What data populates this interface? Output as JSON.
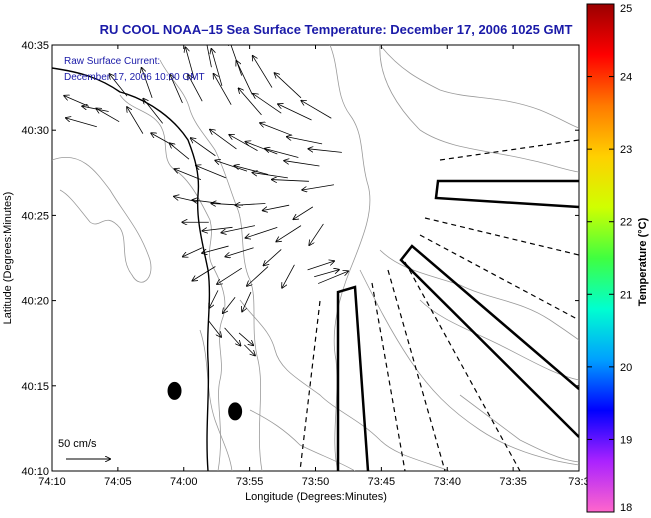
{
  "title": "RU COOL  NOAA–15  Sea Surface Temperature:  December 17, 2006 1025 GMT",
  "current_note": {
    "line1": "Raw Surface Current:",
    "line2": "December 17, 2006 10:00 GMT"
  },
  "scale_label": "50 cm/s",
  "xlabel": "Longitude (Degrees:Minutes)",
  "ylabel": "Latitude (Degrees:Minutes)",
  "x_ticks": [
    "74:10",
    "74:05",
    "74:00",
    "73:55",
    "73:50",
    "73:45",
    "73:40",
    "73:35",
    "73:3"
  ],
  "y_ticks": [
    "40:35",
    "40:30",
    "40:25",
    "40:20",
    "40:15",
    "40:10"
  ],
  "colorbar": {
    "label": "Temperature (°C)",
    "ticks": [
      "25",
      "24",
      "23",
      "22",
      "21",
      "20",
      "19",
      "18"
    ],
    "range": [
      18,
      25
    ],
    "colors": [
      "#ff66cc",
      "#aa22ff",
      "#0000ff",
      "#00a0ff",
      "#00ffd0",
      "#40ff40",
      "#d0ff00",
      "#ffd000",
      "#ff7a00",
      "#ff0000",
      "#9a0000"
    ]
  },
  "colors": {
    "title": "#1a1aa8",
    "coast": "#000000",
    "bathymetry": "#9a9a9a",
    "vectors": "#000000"
  },
  "map_data": {
    "x_range_minutes": [
      -250,
      -210
    ],
    "y_range_minutes": [
      2410,
      2435
    ],
    "stations": [
      {
        "lon": -240.7,
        "lat": 2414.7
      },
      {
        "lon": -236.1,
        "lat": 2413.5
      }
    ],
    "current_vectors_cm_s": [
      {
        "lon": -247.2,
        "lat": 2431.4,
        "u": -28,
        "v": 12
      },
      {
        "lon": -246.6,
        "lat": 2430.2,
        "u": -35,
        "v": 10
      },
      {
        "lon": -245.7,
        "lat": 2431.1,
        "u": -30,
        "v": 6
      },
      {
        "lon": -244.9,
        "lat": 2430.5,
        "u": -26,
        "v": 15
      },
      {
        "lon": -244.3,
        "lat": 2432.0,
        "u": -20,
        "v": 25
      },
      {
        "lon": -243.1,
        "lat": 2429.8,
        "u": -18,
        "v": 30
      },
      {
        "lon": -242.4,
        "lat": 2431.9,
        "u": -12,
        "v": 34
      },
      {
        "lon": -241.6,
        "lat": 2430.4,
        "u": -22,
        "v": 28
      },
      {
        "lon": -240.8,
        "lat": 2429.1,
        "u": -25,
        "v": 14
      },
      {
        "lon": -240.1,
        "lat": 2431.6,
        "u": -14,
        "v": 32
      },
      {
        "lon": -239.2,
        "lat": 2433.0,
        "u": -10,
        "v": 36
      },
      {
        "lon": -238.6,
        "lat": 2431.7,
        "u": -16,
        "v": 30
      },
      {
        "lon": -237.9,
        "lat": 2433.7,
        "u": -8,
        "v": 40
      },
      {
        "lon": -237.1,
        "lat": 2432.6,
        "u": -12,
        "v": 42
      },
      {
        "lon": -236.4,
        "lat": 2431.5,
        "u": -20,
        "v": 35
      },
      {
        "lon": -235.6,
        "lat": 2433.2,
        "u": -14,
        "v": 40
      },
      {
        "lon": -234.8,
        "lat": 2432.1,
        "u": -18,
        "v": 38
      },
      {
        "lon": -234.1,
        "lat": 2430.9,
        "u": -26,
        "v": 30
      },
      {
        "lon": -233.3,
        "lat": 2432.5,
        "u": -22,
        "v": 36
      },
      {
        "lon": -232.6,
        "lat": 2431.0,
        "u": -32,
        "v": 22
      },
      {
        "lon": -231.8,
        "lat": 2429.7,
        "u": -36,
        "v": 14
      },
      {
        "lon": -231.1,
        "lat": 2431.9,
        "u": -30,
        "v": 28
      },
      {
        "lon": -230.3,
        "lat": 2430.6,
        "u": -38,
        "v": 18
      },
      {
        "lon": -229.5,
        "lat": 2429.2,
        "u": -40,
        "v": 8
      },
      {
        "lon": -228.8,
        "lat": 2430.7,
        "u": -34,
        "v": 20
      },
      {
        "lon": -228.0,
        "lat": 2428.7,
        "u": -38,
        "v": 4
      },
      {
        "lon": -239.6,
        "lat": 2428.3,
        "u": -22,
        "v": 18
      },
      {
        "lon": -238.7,
        "lat": 2427.1,
        "u": -30,
        "v": 12
      },
      {
        "lon": -237.6,
        "lat": 2428.5,
        "u": -28,
        "v": 20
      },
      {
        "lon": -236.8,
        "lat": 2427.2,
        "u": -34,
        "v": 14
      },
      {
        "lon": -236.0,
        "lat": 2428.9,
        "u": -30,
        "v": 22
      },
      {
        "lon": -235.2,
        "lat": 2427.6,
        "u": -36,
        "v": 12
      },
      {
        "lon": -234.4,
        "lat": 2428.8,
        "u": -32,
        "v": 18
      },
      {
        "lon": -233.6,
        "lat": 2427.4,
        "u": -38,
        "v": 10
      },
      {
        "lon": -232.9,
        "lat": 2428.6,
        "u": -36,
        "v": 14
      },
      {
        "lon": -232.1,
        "lat": 2427.2,
        "u": -40,
        "v": 6
      },
      {
        "lon": -231.3,
        "lat": 2428.4,
        "u": -38,
        "v": 10
      },
      {
        "lon": -230.5,
        "lat": 2427.0,
        "u": -42,
        "v": 2
      },
      {
        "lon": -229.7,
        "lat": 2427.9,
        "u": -40,
        "v": 6
      },
      {
        "lon": -228.6,
        "lat": 2426.8,
        "u": -36,
        "v": -6
      },
      {
        "lon": -239.0,
        "lat": 2425.8,
        "u": -26,
        "v": 6
      },
      {
        "lon": -238.1,
        "lat": 2424.6,
        "u": -30,
        "v": 0
      },
      {
        "lon": -237.2,
        "lat": 2425.7,
        "u": -32,
        "v": 4
      },
      {
        "lon": -236.3,
        "lat": 2424.3,
        "u": -34,
        "v": -4
      },
      {
        "lon": -235.5,
        "lat": 2425.6,
        "u": -36,
        "v": 2
      },
      {
        "lon": -234.6,
        "lat": 2424.4,
        "u": -38,
        "v": -8
      },
      {
        "lon": -233.8,
        "lat": 2425.7,
        "u": -34,
        "v": -2
      },
      {
        "lon": -232.9,
        "lat": 2424.3,
        "u": -36,
        "v": -12
      },
      {
        "lon": -232.0,
        "lat": 2425.6,
        "u": -30,
        "v": -6
      },
      {
        "lon": -231.1,
        "lat": 2424.4,
        "u": -28,
        "v": -18
      },
      {
        "lon": -230.2,
        "lat": 2425.5,
        "u": -22,
        "v": -14
      },
      {
        "lon": -229.4,
        "lat": 2424.5,
        "u": -16,
        "v": -24
      },
      {
        "lon": -238.6,
        "lat": 2423.1,
        "u": -22,
        "v": -10
      },
      {
        "lon": -237.6,
        "lat": 2422.0,
        "u": -26,
        "v": -16
      },
      {
        "lon": -236.6,
        "lat": 2423.2,
        "u": -30,
        "v": -8
      },
      {
        "lon": -235.6,
        "lat": 2421.9,
        "u": -28,
        "v": -18
      },
      {
        "lon": -234.7,
        "lat": 2423.1,
        "u": -32,
        "v": -10
      },
      {
        "lon": -233.6,
        "lat": 2422.0,
        "u": -24,
        "v": -22
      },
      {
        "lon": -232.6,
        "lat": 2423.0,
        "u": -20,
        "v": -18
      },
      {
        "lon": -231.6,
        "lat": 2422.1,
        "u": -14,
        "v": -26
      },
      {
        "lon": -230.6,
        "lat": 2421.8,
        "u": 30,
        "v": 10
      },
      {
        "lon": -229.8,
        "lat": 2421.0,
        "u": 34,
        "v": 14
      },
      {
        "lon": -230.1,
        "lat": 2421.4,
        "u": 28,
        "v": 8
      },
      {
        "lon": -237.4,
        "lat": 2420.6,
        "u": -10,
        "v": -20
      },
      {
        "lon": -236.1,
        "lat": 2420.2,
        "u": -14,
        "v": -18
      },
      {
        "lon": -234.9,
        "lat": 2420.5,
        "u": -10,
        "v": -22
      },
      {
        "lon": -238.1,
        "lat": 2418.8,
        "u": 14,
        "v": -18
      },
      {
        "lon": -236.9,
        "lat": 2418.4,
        "u": 18,
        "v": -20
      },
      {
        "lon": -235.8,
        "lat": 2418.1,
        "u": 16,
        "v": -14
      },
      {
        "lon": -235.4,
        "lat": 2417.4,
        "u": 12,
        "v": -12
      }
    ],
    "raw_vector_count_note": ""
  }
}
